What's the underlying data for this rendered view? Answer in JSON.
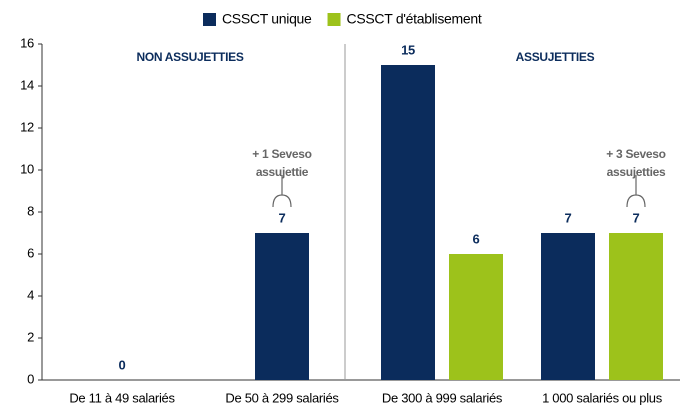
{
  "chart_data": {
    "type": "bar",
    "categories": [
      "De 11 à 49 salariés",
      "De 50 à 299 salariés",
      "De 300 à 999 salariés",
      "1 000 salariés ou plus"
    ],
    "series": [
      {
        "name": "CSSCT unique",
        "color": "#0b2c5c",
        "values": [
          0,
          7,
          15,
          7
        ]
      },
      {
        "name": "CSSCT d'établisement",
        "color": "#9dc21b",
        "values": [
          null,
          null,
          6,
          7
        ]
      }
    ],
    "ylim": [
      0,
      16
    ],
    "yticks": [
      0,
      2,
      4,
      6,
      8,
      10,
      12,
      14,
      16
    ],
    "grid": false,
    "legend": "top",
    "group_labels": [
      "NON ASSUJETTIES",
      "ASSUJETTIES"
    ],
    "annotations": [
      {
        "category": 1,
        "lines": [
          "+ 1 Seveso",
          "assujettie"
        ]
      },
      {
        "category": 3,
        "lines": [
          "+ 3 Seveso",
          "assujetties"
        ]
      }
    ]
  }
}
